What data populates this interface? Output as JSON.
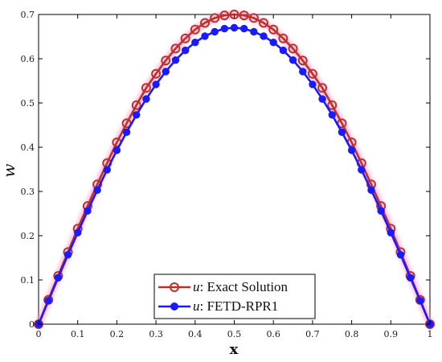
{
  "chart_data": {
    "type": "line",
    "xlabel": "x",
    "ylabel": "w",
    "xlim": [
      0,
      1
    ],
    "ylim": [
      0,
      0.7
    ],
    "x_ticks": [
      0,
      0.1,
      0.2,
      0.3,
      0.4,
      0.5,
      0.6,
      0.7,
      0.8,
      0.9,
      1
    ],
    "x_tick_labels": [
      "0",
      "0.1",
      "0.2",
      "0.3",
      "0.4",
      "0.5",
      "0.6",
      "0.7",
      "0.8",
      "0.9",
      "1"
    ],
    "y_ticks": [
      0,
      0.1,
      0.2,
      0.3,
      0.4,
      0.5,
      0.6,
      0.7
    ],
    "y_tick_labels": [
      "0",
      "0.1",
      "0.2",
      "0.3",
      "0.4",
      "0.5",
      "0.6",
      "0.7"
    ],
    "grid": false,
    "legend_position": "bottom-center",
    "x": [
      0,
      0.025,
      0.05,
      0.075,
      0.1,
      0.125,
      0.15,
      0.175,
      0.2,
      0.225,
      0.25,
      0.275,
      0.3,
      0.325,
      0.35,
      0.375,
      0.4,
      0.425,
      0.45,
      0.475,
      0.5,
      0.525,
      0.55,
      0.575,
      0.6,
      0.625,
      0.65,
      0.675,
      0.7,
      0.725,
      0.75,
      0.775,
      0.8,
      0.825,
      0.85,
      0.875,
      0.9,
      0.925,
      0.95,
      0.975,
      1
    ],
    "series": [
      {
        "label_var": "u",
        "label_text": ": Exact Solution",
        "color": "#c0302b",
        "marker": "open-circle",
        "values": [
          0,
          0.055,
          0.109,
          0.163,
          0.216,
          0.267,
          0.316,
          0.364,
          0.411,
          0.454,
          0.495,
          0.534,
          0.566,
          0.596,
          0.623,
          0.646,
          0.666,
          0.681,
          0.692,
          0.698,
          0.7,
          0.698,
          0.692,
          0.681,
          0.666,
          0.646,
          0.623,
          0.596,
          0.566,
          0.534,
          0.495,
          0.454,
          0.411,
          0.364,
          0.316,
          0.267,
          0.216,
          0.163,
          0.109,
          0.055,
          0
        ]
      },
      {
        "label_var": "u",
        "label_text": ": FETD-RPR1",
        "color": "#1a1aff",
        "marker": "filled-circle",
        "values": [
          0,
          0.053,
          0.105,
          0.157,
          0.207,
          0.256,
          0.303,
          0.349,
          0.393,
          0.434,
          0.473,
          0.509,
          0.542,
          0.571,
          0.597,
          0.619,
          0.637,
          0.651,
          0.661,
          0.668,
          0.67,
          0.668,
          0.661,
          0.651,
          0.637,
          0.619,
          0.597,
          0.571,
          0.542,
          0.509,
          0.473,
          0.434,
          0.393,
          0.349,
          0.303,
          0.256,
          0.207,
          0.157,
          0.105,
          0.053,
          0
        ]
      }
    ]
  }
}
